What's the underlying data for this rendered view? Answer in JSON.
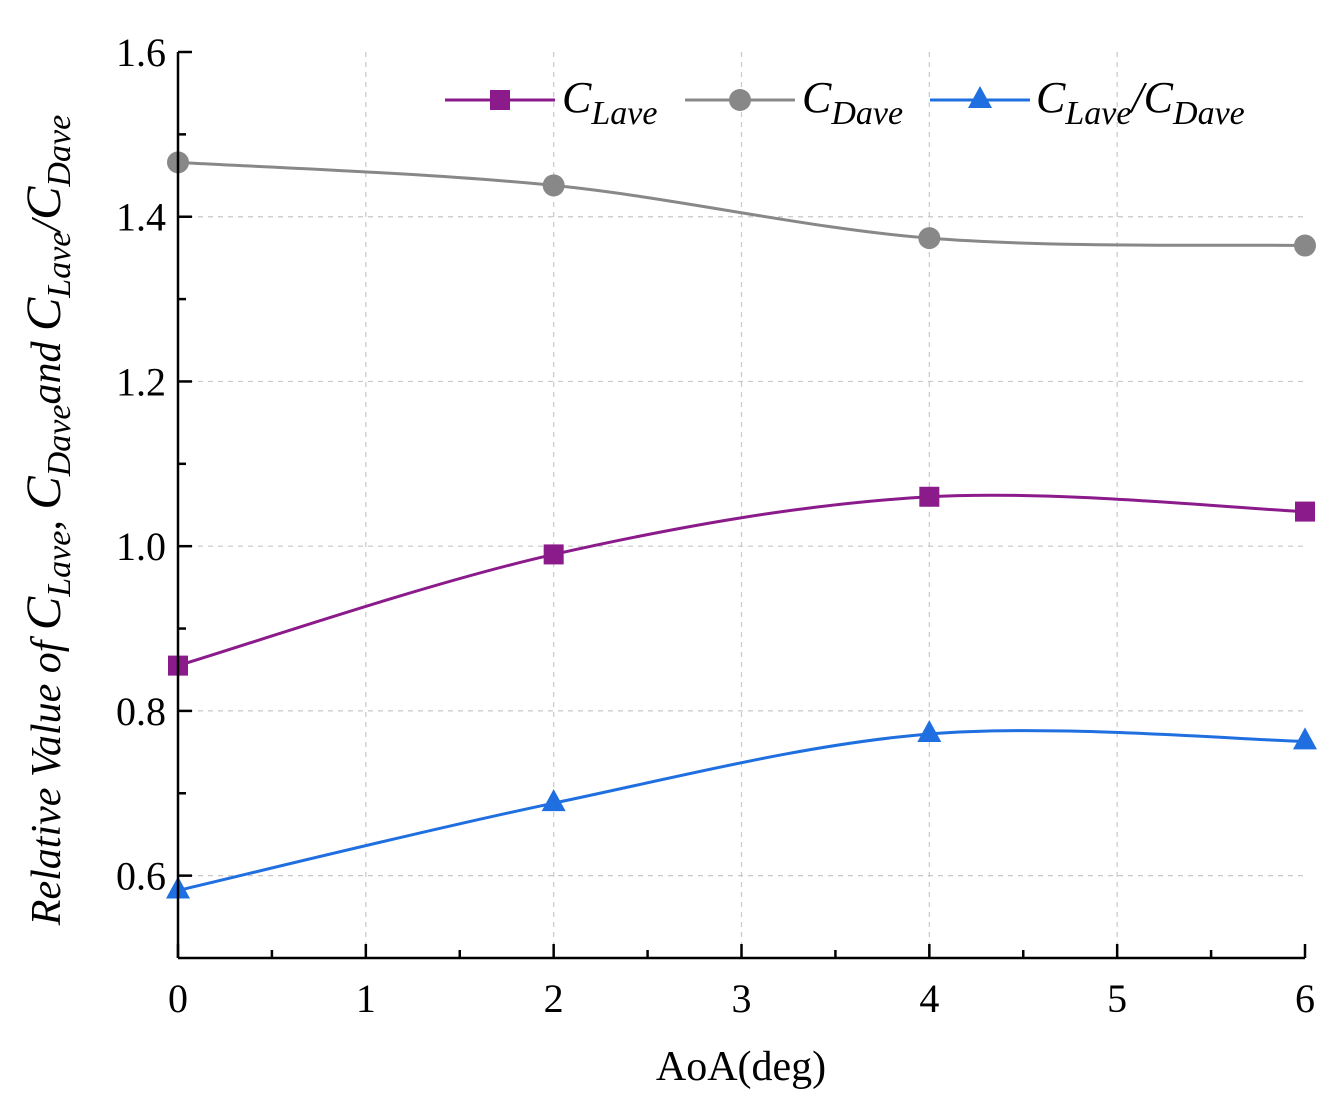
{
  "chart_data": {
    "type": "line",
    "title": "",
    "xlabel": "AoA(deg)",
    "ylabel": "Relative Value of C_Lave, C_Dave and C_Lave/C_Dave",
    "ylabel_parts": {
      "prefix": "Relative Value of ",
      "c1": "C",
      "s1": "Lave",
      "sep1": ",  ",
      "c2": "C",
      "s2": "Dave",
      "and": "and ",
      "c3": "C",
      "s3": "Lave",
      "slash": "/",
      "c4": "C",
      "s4": "Dave"
    },
    "xlim": [
      0,
      6
    ],
    "ylim": [
      0.5,
      1.6
    ],
    "x_ticks": [
      "0",
      "1",
      "2",
      "3",
      "4",
      "5",
      "6"
    ],
    "y_ticks": [
      "0.6",
      "0.8",
      "1.0",
      "1.2",
      "1.4",
      "1.6"
    ],
    "grid": true,
    "legend_position": "top-right",
    "x": [
      0,
      2,
      4,
      6
    ],
    "series": [
      {
        "name": "C_Lave",
        "label_main": "C",
        "label_sub": "Lave",
        "color": "#8B1A8B",
        "marker": "square",
        "values": [
          0.855,
          0.99,
          1.06,
          1.042
        ]
      },
      {
        "name": "C_Dave",
        "label_main": "C",
        "label_sub": "Dave",
        "color": "#888888",
        "marker": "circle",
        "values": [
          1.466,
          1.438,
          1.374,
          1.365
        ]
      },
      {
        "name": "C_Lave/C_Dave",
        "label_main": "C",
        "label_sub": "Lave",
        "label_mid": "/C",
        "label_sub2": "Dave",
        "color": "#1F6FE0",
        "marker": "triangle",
        "values": [
          0.582,
          0.688,
          0.772,
          0.763
        ]
      }
    ]
  }
}
